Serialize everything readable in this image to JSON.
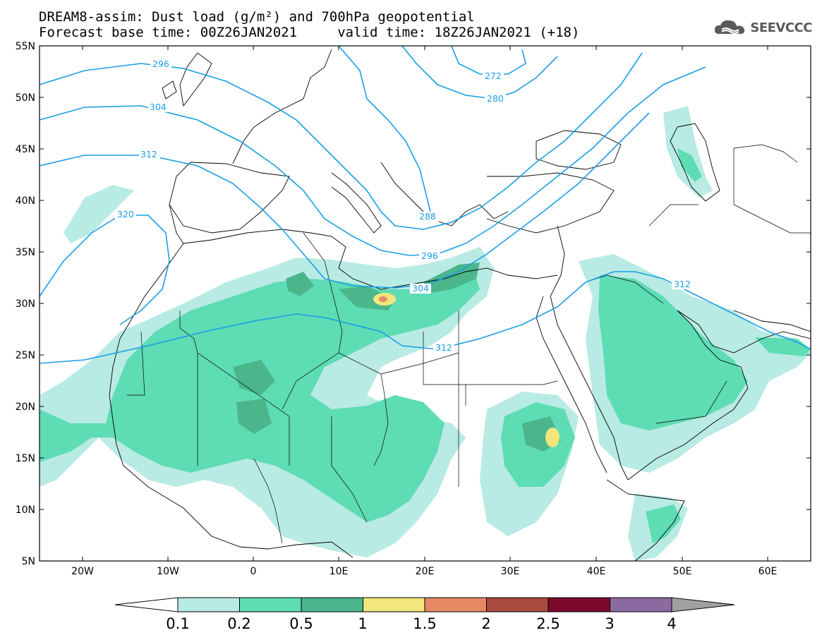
{
  "header": {
    "title_line1": "DREAM8-assim: Dust load (g/m²) and 700hPa geopotential",
    "title_line2": "Forecast base time: 00Z26JAN2021     valid time: 18Z26JAN2021 (+18)"
  },
  "logo": {
    "text": "SEEVCCC",
    "icon": "cloud-icon"
  },
  "map": {
    "lat_ticks": [
      "55N",
      "50N",
      "45N",
      "40N",
      "35N",
      "30N",
      "25N",
      "20N",
      "15N",
      "10N",
      "5N"
    ],
    "lon_ticks": [
      "20W",
      "10W",
      "0",
      "10E",
      "20E",
      "30E",
      "40E",
      "50E",
      "60E"
    ],
    "contour_labels": [
      "296",
      "304",
      "312",
      "320",
      "272",
      "280",
      "288",
      "296",
      "304",
      "312",
      "312"
    ],
    "contour_color": "#1a9ee6",
    "dust_colors": [
      "#b8ebe3",
      "#5edcb3",
      "#4bb58c",
      "#f2e67c",
      "#e58a64",
      "#a84a3e",
      "#7c0a2a",
      "#8a6aa0"
    ]
  },
  "colorbar": {
    "labels": [
      "0.1",
      "0.2",
      "0.5",
      "1",
      "1.5",
      "2",
      "2.5",
      "3",
      "4"
    ],
    "colors": [
      "#b8ebe3",
      "#5edcb3",
      "#4bb58c",
      "#f2e67c",
      "#e58a64",
      "#a84a3e",
      "#7c0a2a",
      "#8a6aa0"
    ],
    "low_arrow_color": "#ffffff",
    "high_arrow_color": "#a0a0a0"
  }
}
